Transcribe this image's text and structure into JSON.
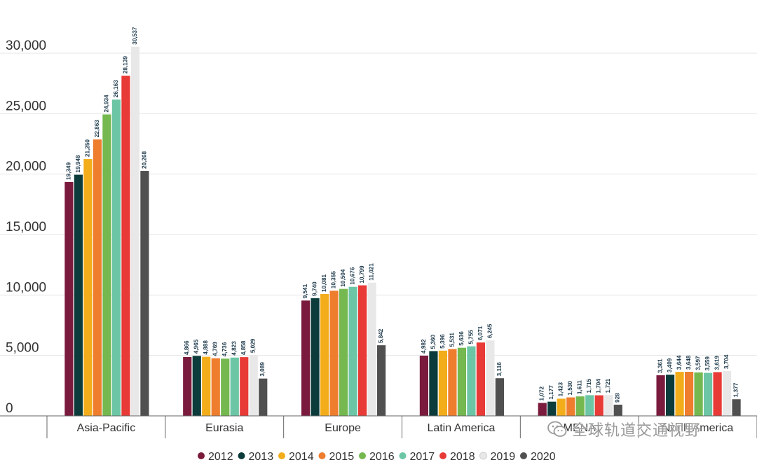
{
  "chart_data": {
    "type": "bar",
    "title": "",
    "xlabel": "",
    "ylabel": "",
    "ylim": [
      0,
      30000
    ],
    "yticks": [
      "0",
      "5,000",
      "10,000",
      "15,000",
      "20,000",
      "25,000",
      "30,000"
    ],
    "ytick_values": [
      0,
      5000,
      10000,
      15000,
      20000,
      25000,
      30000
    ],
    "grid": true,
    "legend_position": "bottom-center",
    "categories": [
      "Asia-Pacific",
      "Eurasia",
      "Europe",
      "Latin America",
      "MENA",
      "North America"
    ],
    "series": [
      {
        "name": "2012",
        "color": "#7a1a3c",
        "values": [
          19349,
          4866,
          9541,
          4982,
          1072,
          3361
        ],
        "labels": [
          "19,349",
          "4,866",
          "9,541",
          "4,982",
          "1,072",
          "3,361"
        ]
      },
      {
        "name": "2013",
        "color": "#0b3b3a",
        "values": [
          19948,
          4965,
          9740,
          5360,
          1177,
          3409
        ],
        "labels": [
          "19,948",
          "4,965",
          "9,740",
          "5,360",
          "1,177",
          "3,409"
        ]
      },
      {
        "name": "2014",
        "color": "#f3ad1b",
        "values": [
          21250,
          4888,
          10081,
          5396,
          1423,
          3644
        ],
        "labels": [
          "21,250",
          "4,888",
          "10,081",
          "5,396",
          "1,423",
          "3,644"
        ]
      },
      {
        "name": "2015",
        "color": "#ee7d2e",
        "values": [
          22863,
          4769,
          10355,
          5531,
          1530,
          3648
        ],
        "labels": [
          "22,863",
          "4,769",
          "10,355",
          "5,531",
          "1,530",
          "3,648"
        ]
      },
      {
        "name": "2016",
        "color": "#74b84f",
        "values": [
          24934,
          4736,
          10504,
          5636,
          1611,
          3597
        ],
        "labels": [
          "24,934",
          "4,736",
          "10,504",
          "5,636",
          "1,611",
          "3,597"
        ]
      },
      {
        "name": "2017",
        "color": "#6cc6a6",
        "values": [
          26163,
          4823,
          10676,
          5755,
          1715,
          3559
        ],
        "labels": [
          "26,163",
          "4,823",
          "10,676",
          "5,755",
          "1,715",
          "3,559"
        ]
      },
      {
        "name": "2018",
        "color": "#e83a36",
        "values": [
          28139,
          4858,
          10799,
          6071,
          1704,
          3619
        ],
        "labels": [
          "28,139",
          "4,858",
          "10,799",
          "6,071",
          "1,704",
          "3,619"
        ]
      },
      {
        "name": "2019",
        "color": "#e8e8e8",
        "values": [
          30537,
          5029,
          11021,
          6245,
          1721,
          3704
        ],
        "labels": [
          "30,537",
          "5,029",
          "11,021",
          "6,245",
          "1,721",
          "3,704"
        ]
      },
      {
        "name": "2020",
        "color": "#505050",
        "values": [
          20268,
          3089,
          5842,
          3116,
          928,
          1377
        ],
        "labels": [
          "20,268",
          "3,089",
          "5,842",
          "3,116",
          "928",
          "1,377"
        ]
      }
    ]
  },
  "watermark": {
    "text": "全球轨道交通视野",
    "icon": "wechat-icon"
  }
}
